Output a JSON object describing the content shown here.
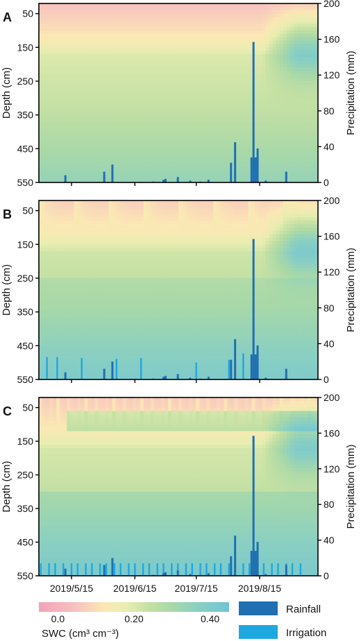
{
  "chart_data": {
    "type": "heatmap",
    "shared": {
      "ylabel_left": "Depth (cm)",
      "ylabel_right": "Precipitation (mm)",
      "depth_ticks": [
        50,
        150,
        250,
        350,
        450,
        550
      ],
      "depth_range": [
        20,
        550
      ],
      "precip_ticks": [
        0,
        40,
        80,
        120,
        160,
        200
      ],
      "precip_range": [
        0,
        200
      ],
      "x_range_days": [
        0,
        115
      ],
      "x_tick_days": [
        0,
        31,
        61,
        92
      ],
      "x_tick_labels": [
        "2019/5/15",
        "2019/6/15",
        "2019/7/15",
        "2019/8/15"
      ],
      "colorbar": {
        "title": "SWC (cm³ cm⁻³)",
        "range": [
          -0.05,
          0.45
        ],
        "tick_values": [
          0.0,
          0.2,
          0.4
        ],
        "tick_labels": [
          "0.0",
          "0.20",
          "0.40"
        ],
        "stops": [
          {
            "v": -0.05,
            "c": "#f4a3b8"
          },
          {
            "v": 0.05,
            "c": "#f7c2c0"
          },
          {
            "v": 0.12,
            "c": "#fbe8b4"
          },
          {
            "v": 0.18,
            "c": "#e8edb0"
          },
          {
            "v": 0.24,
            "c": "#c4e0a4"
          },
          {
            "v": 0.3,
            "c": "#a8d8a8"
          },
          {
            "v": 0.36,
            "c": "#8cd0c0"
          },
          {
            "v": 0.45,
            "c": "#6fc4d6"
          }
        ]
      },
      "legend": [
        {
          "label": "Rainfall",
          "color": "#1f6fb3"
        },
        {
          "label": "Irrigation",
          "color": "#1ea8e0"
        }
      ],
      "rainfall": [
        {
          "day": -3,
          "mm": 8
        },
        {
          "day": 16,
          "mm": 12
        },
        {
          "day": 20,
          "mm": 20
        },
        {
          "day": 40,
          "mm": 1
        },
        {
          "day": 45,
          "mm": 3
        },
        {
          "day": 46,
          "mm": 4
        },
        {
          "day": 52,
          "mm": 6
        },
        {
          "day": 58,
          "mm": 2
        },
        {
          "day": 63,
          "mm": 1
        },
        {
          "day": 67,
          "mm": 3
        },
        {
          "day": 78,
          "mm": 22
        },
        {
          "day": 80,
          "mm": 45
        },
        {
          "day": 88,
          "mm": 28
        },
        {
          "day": 89,
          "mm": 157
        },
        {
          "day": 90,
          "mm": 28
        },
        {
          "day": 91,
          "mm": 38
        },
        {
          "day": 95,
          "mm": 2
        },
        {
          "day": 105,
          "mm": 12
        }
      ]
    },
    "panels": [
      {
        "label": "A",
        "irrigation": []
      },
      {
        "label": "B",
        "irrigation": [
          {
            "day": -19,
            "mm": 18
          },
          {
            "day": -12,
            "mm": 25
          },
          {
            "day": -7,
            "mm": 25
          },
          {
            "day": 5,
            "mm": 24
          },
          {
            "day": 22,
            "mm": 23
          },
          {
            "day": 34,
            "mm": 24
          },
          {
            "day": 61,
            "mm": 19
          },
          {
            "day": 77,
            "mm": 22
          },
          {
            "day": 84,
            "mm": 29
          },
          {
            "day": 89,
            "mm": 30
          }
        ]
      },
      {
        "label": "C",
        "irrigation": [
          {
            "day": -18,
            "mm": 14
          },
          {
            "day": -15,
            "mm": 14
          },
          {
            "day": -11,
            "mm": 14
          },
          {
            "day": -8,
            "mm": 14
          },
          {
            "day": -4,
            "mm": 14
          },
          {
            "day": 0,
            "mm": 14
          },
          {
            "day": 3,
            "mm": 14
          },
          {
            "day": 7,
            "mm": 14
          },
          {
            "day": 10,
            "mm": 14
          },
          {
            "day": 14,
            "mm": 14
          },
          {
            "day": 17,
            "mm": 14
          },
          {
            "day": 21,
            "mm": 14
          },
          {
            "day": 24,
            "mm": 14
          },
          {
            "day": 28,
            "mm": 14
          },
          {
            "day": 31,
            "mm": 14
          },
          {
            "day": 35,
            "mm": 14
          },
          {
            "day": 38,
            "mm": 14
          },
          {
            "day": 42,
            "mm": 14
          },
          {
            "day": 45,
            "mm": 14
          },
          {
            "day": 49,
            "mm": 14
          },
          {
            "day": 52,
            "mm": 14
          },
          {
            "day": 56,
            "mm": 14
          },
          {
            "day": 59,
            "mm": 14
          },
          {
            "day": 63,
            "mm": 14
          },
          {
            "day": 66,
            "mm": 14
          },
          {
            "day": 70,
            "mm": 14
          },
          {
            "day": 73,
            "mm": 14
          },
          {
            "day": 77,
            "mm": 14
          },
          {
            "day": 80,
            "mm": 14
          },
          {
            "day": 84,
            "mm": 14
          },
          {
            "day": 87,
            "mm": 14
          },
          {
            "day": 91,
            "mm": 14
          },
          {
            "day": 94,
            "mm": 14
          },
          {
            "day": 98,
            "mm": 14
          },
          {
            "day": 101,
            "mm": 14
          },
          {
            "day": 105,
            "mm": 14
          },
          {
            "day": 108,
            "mm": 14
          },
          {
            "day": 112,
            "mm": 14
          }
        ]
      }
    ]
  }
}
